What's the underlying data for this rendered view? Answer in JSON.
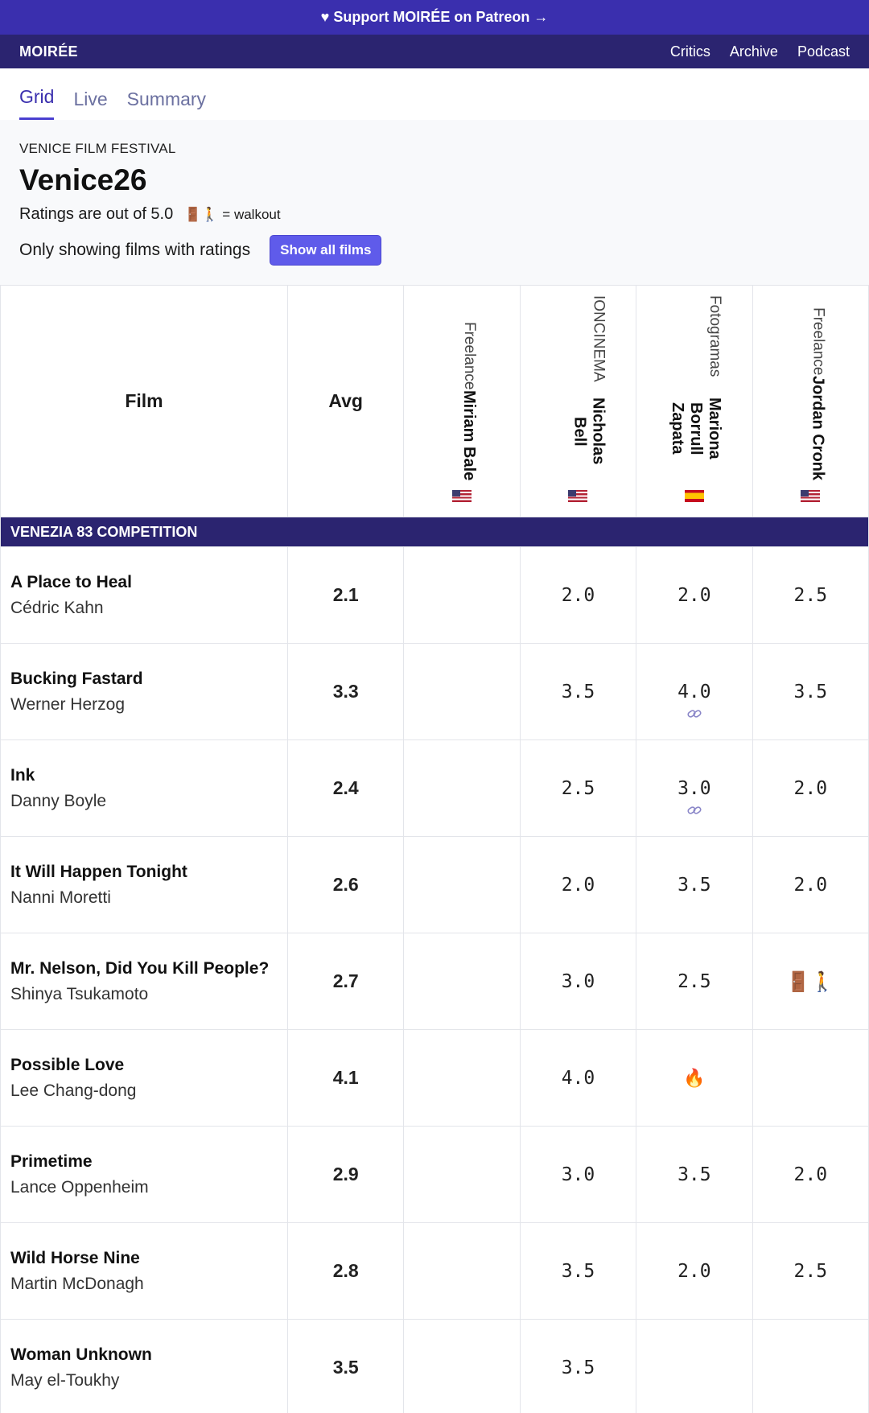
{
  "promo": {
    "text": "♥ Support MOIRÉE on Patreon →"
  },
  "nav": {
    "brand": "MOIRÉE",
    "links": [
      "Critics",
      "Archive",
      "Podcast"
    ]
  },
  "tabs": [
    "Grid",
    "Live",
    "Summary"
  ],
  "header": {
    "eyebrow": "VENICE FILM FESTIVAL",
    "title": "Venice26",
    "ratings_note": "Ratings are out of 5.0",
    "walkout_key": "🚪🚶 = walkout",
    "filter_text": "Only showing films with ratings",
    "show_all_label": "Show all films"
  },
  "table": {
    "film_header": "Film",
    "avg_header": "Avg",
    "critics": [
      {
        "name": "Miriam Bale",
        "publication": "Freelance",
        "flag": "us"
      },
      {
        "name": "Nicholas Bell",
        "publication": "IONCINEMA",
        "flag": "us"
      },
      {
        "name": "Mariona Borrull Zapata",
        "publication": "Fotogramas",
        "flag": "es"
      },
      {
        "name": "Jordan Cronk",
        "publication": "Freelance",
        "flag": "us"
      }
    ],
    "section": "VENEZIA 83 COMPETITION",
    "films": [
      {
        "title": "A Place to Heal",
        "director": "Cédric Kahn",
        "avg": "2.1",
        "scores": [
          "",
          "2.0",
          "2.0",
          "2.5"
        ]
      },
      {
        "title": "Bucking Fastard",
        "director": "Werner Herzog",
        "avg": "3.3",
        "scores": [
          "",
          "3.5",
          "4.0",
          "3.5"
        ]
      },
      {
        "title": "Ink",
        "director": "Danny Boyle",
        "avg": "2.4",
        "scores": [
          "",
          "2.5",
          "3.0",
          "2.0"
        ]
      },
      {
        "title": "It Will Happen Tonight",
        "director": "Nanni Moretti",
        "avg": "2.6",
        "scores": [
          "",
          "2.0",
          "3.5",
          "2.0"
        ]
      },
      {
        "title": "Mr. Nelson, Did You Kill People?",
        "director": "Shinya Tsukamoto",
        "avg": "2.7",
        "scores": [
          "",
          "3.0",
          "2.5",
          "🚪🚶"
        ]
      },
      {
        "title": "Possible Love",
        "director": "Lee Chang-dong",
        "avg": "4.1",
        "scores": [
          "",
          "4.0",
          "🔥",
          ""
        ]
      },
      {
        "title": "Primetime",
        "director": "Lance Oppenheim",
        "avg": "2.9",
        "scores": [
          "",
          "3.0",
          "3.5",
          "2.0"
        ]
      },
      {
        "title": "Wild Horse Nine",
        "director": "Martin McDonagh",
        "avg": "2.8",
        "scores": [
          "",
          "3.5",
          "2.0",
          "2.5"
        ]
      },
      {
        "title": "Woman Unknown",
        "director": "May el-Toukhy",
        "avg": "3.5",
        "scores": [
          "",
          "3.5",
          "",
          ""
        ]
      }
    ]
  }
}
